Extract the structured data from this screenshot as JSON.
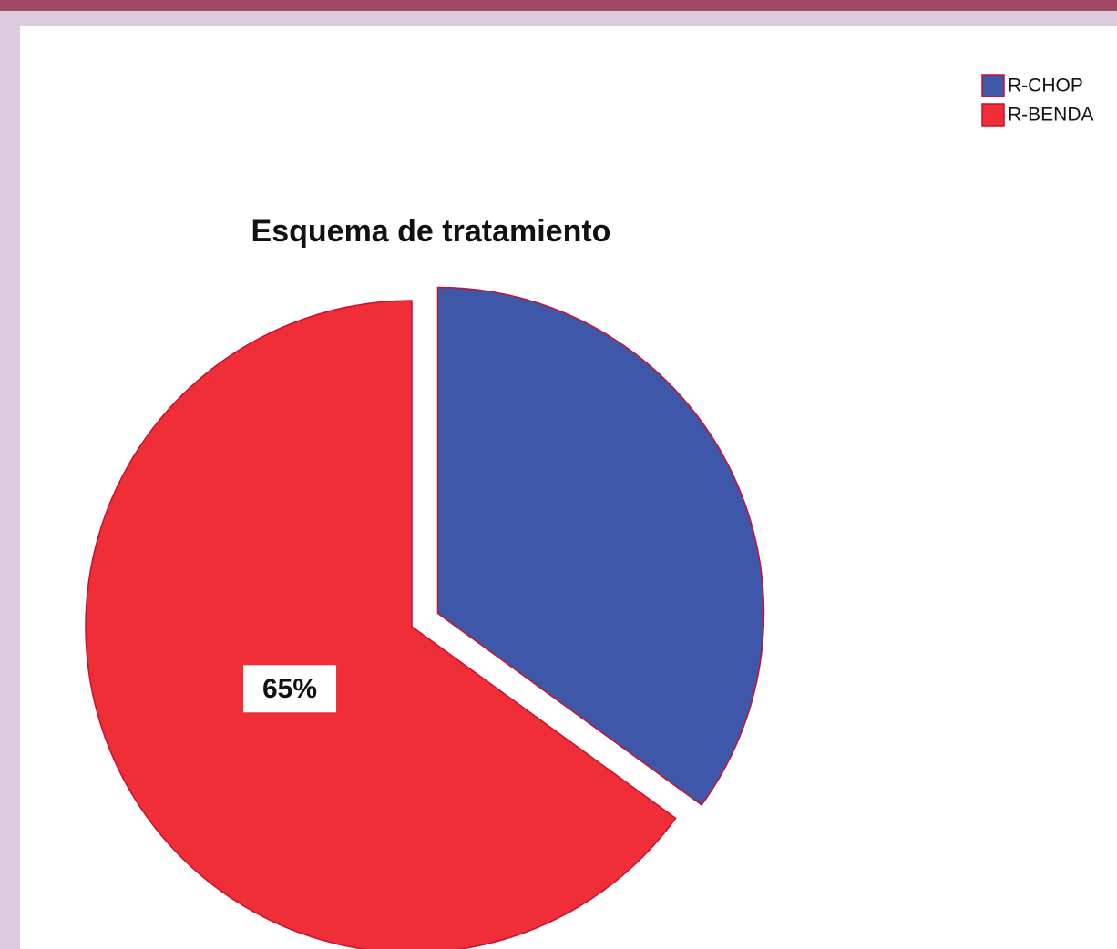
{
  "chart_data": {
    "type": "pie",
    "title": "Esquema de tratamiento",
    "categories": [
      "R-CHOP",
      "R-BENDA"
    ],
    "values": [
      35,
      65
    ],
    "value_labels": [
      null,
      "65%"
    ],
    "colors": [
      "#3f57a8",
      "#ef2e37"
    ],
    "exploded": [
      true,
      false
    ],
    "legend": "top-right"
  }
}
